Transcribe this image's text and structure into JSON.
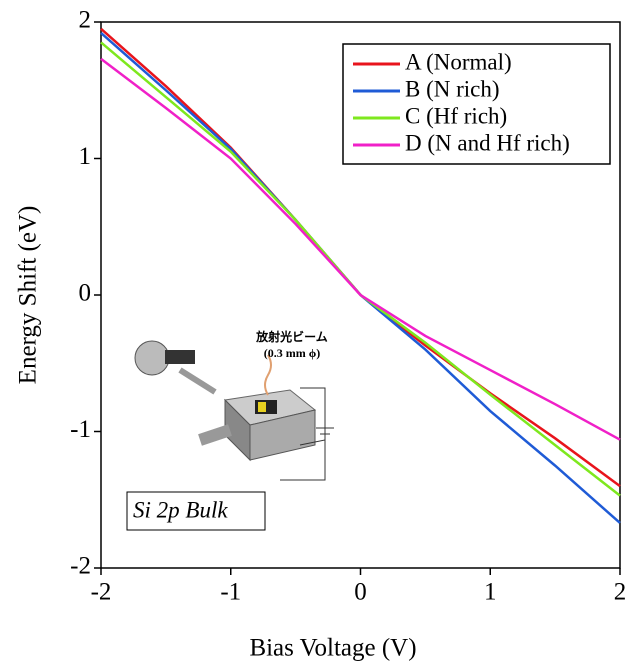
{
  "chart_data": {
    "type": "line",
    "x_label": "Bias Voltage (V)",
    "y_label": "Energy Shift (eV)",
    "x": [
      -2,
      -1.5,
      -1,
      -0.5,
      0,
      0.5,
      1,
      1.5,
      2
    ],
    "series": [
      {
        "name": "A (Normal)",
        "color": "#e8141c",
        "values": [
          1.95,
          1.53,
          1.08,
          0.55,
          0,
          -0.37,
          -0.72,
          -1.05,
          -1.4
        ]
      },
      {
        "name": "B (N rich)",
        "color": "#1f5bd6",
        "values": [
          1.92,
          1.5,
          1.07,
          0.55,
          0,
          -0.4,
          -0.85,
          -1.25,
          -1.67
        ]
      },
      {
        "name": "C (Hf rich)",
        "color": "#7ee81e",
        "values": [
          1.85,
          1.45,
          1.05,
          0.55,
          0,
          -0.35,
          -0.73,
          -1.1,
          -1.47
        ]
      },
      {
        "name": "D (N and Hf rich)",
        "color": "#f020c8",
        "values": [
          1.73,
          1.37,
          1.0,
          0.52,
          0,
          -0.3,
          -0.55,
          -0.8,
          -1.06
        ]
      }
    ],
    "xlim": [
      -2,
      2
    ],
    "xticks": [
      -2,
      -1,
      0,
      1,
      2
    ],
    "ylim": [
      -2,
      2
    ],
    "yticks": [
      -2,
      -1,
      0,
      1,
      2
    ],
    "legend": "upper right",
    "annotation": "Si 2p Bulk",
    "inset_labels": [
      "放射光ビーム",
      "(0.3 mm ϕ)"
    ]
  }
}
